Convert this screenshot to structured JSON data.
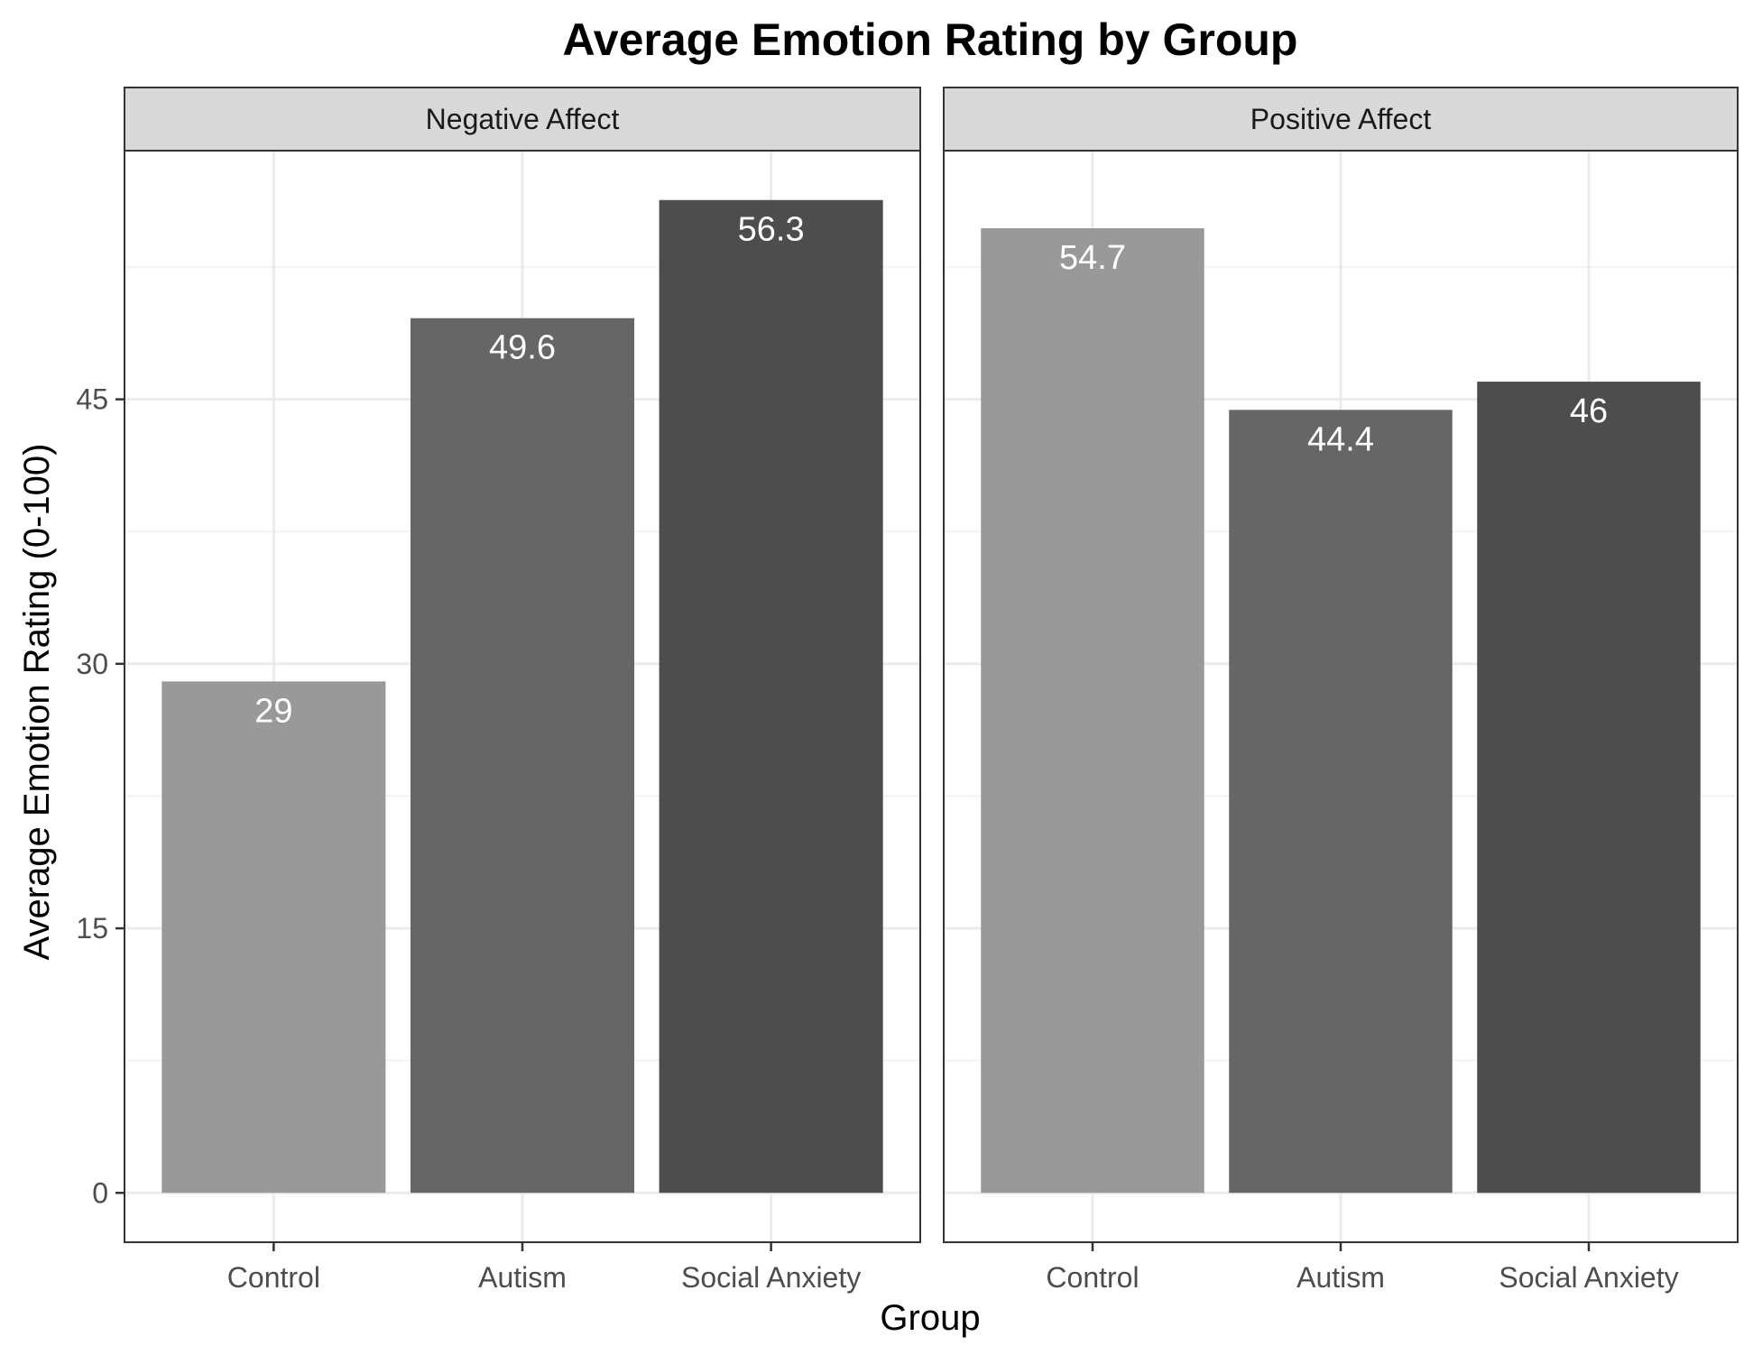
{
  "chart_data": {
    "type": "bar",
    "title": "Average Emotion Rating by Group",
    "xlabel": "Group",
    "ylabel": "Average Emotion Rating (0-100)",
    "categories": [
      "Control",
      "Autism",
      "Social Anxiety"
    ],
    "yticks": [
      0,
      15,
      30,
      45
    ],
    "ylim": [
      -2.8,
      59.1
    ],
    "grid": true,
    "legend": "none",
    "bar_colors": [
      "#999999",
      "#666666",
      "#4d4d4d"
    ],
    "panels": [
      {
        "name": "Negative Affect",
        "values": [
          29,
          49.6,
          56.3
        ],
        "labels": [
          "29",
          "49.6",
          "56.3"
        ]
      },
      {
        "name": "Positive Affect",
        "values": [
          54.7,
          44.4,
          46
        ],
        "labels": [
          "54.7",
          "44.4",
          "46"
        ]
      }
    ]
  }
}
